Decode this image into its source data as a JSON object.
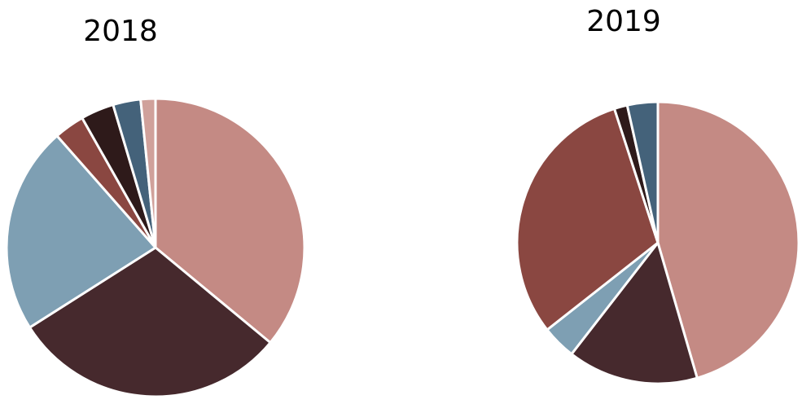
{
  "chart_data": [
    {
      "type": "pie",
      "title": "2018",
      "start": "top",
      "direction": "clockwise",
      "legend": "none",
      "slices": [
        {
          "value": 36.0,
          "color": "#c48a84"
        },
        {
          "value": 30.0,
          "color": "#46292d"
        },
        {
          "value": 22.5,
          "color": "#7e9fb3"
        },
        {
          "value": 3.3,
          "color": "#8a4741"
        },
        {
          "value": 3.6,
          "color": "#2e1a1a"
        },
        {
          "value": 3.0,
          "color": "#44627a"
        },
        {
          "value": 1.6,
          "color": "#d0a19b"
        }
      ]
    },
    {
      "type": "pie",
      "title": "2019",
      "start": "top",
      "direction": "clockwise",
      "legend": "none",
      "slices": [
        {
          "value": 45.5,
          "color": "#c48a84"
        },
        {
          "value": 15.0,
          "color": "#46292d"
        },
        {
          "value": 3.9,
          "color": "#7e9fb3"
        },
        {
          "value": 30.6,
          "color": "#8a4741"
        },
        {
          "value": 1.5,
          "color": "#2e1a1a"
        },
        {
          "value": 3.5,
          "color": "#44627a"
        }
      ]
    }
  ]
}
